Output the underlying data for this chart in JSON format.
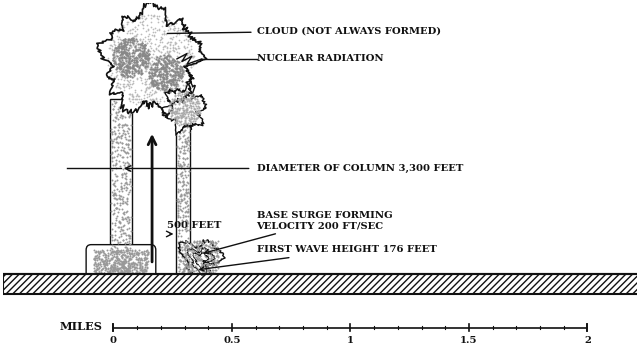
{
  "bg_color": "#ffffff",
  "line_color": "#111111",
  "stipple_color": "#aaaaaa",
  "ground_hatch_color": "#222222",
  "annotations": {
    "cloud": "CLOUD (NOT ALWAYS FORMED)",
    "radiation": "NUCLEAR RADIATION",
    "diameter": "DIAMETER OF COLUMN 3,300 FEET",
    "base_surge": "BASE SURGE FORMING\nVELOCITY 200 FT/SEC",
    "wave": "FIRST WAVE HEIGHT 176 FEET",
    "height_label": "500 FEET",
    "miles_label": "MILES"
  },
  "scale_ticks": [
    0.0,
    0.5,
    1.0,
    1.5,
    2.0
  ],
  "figsize": [
    6.4,
    3.53
  ],
  "dpi": 100
}
